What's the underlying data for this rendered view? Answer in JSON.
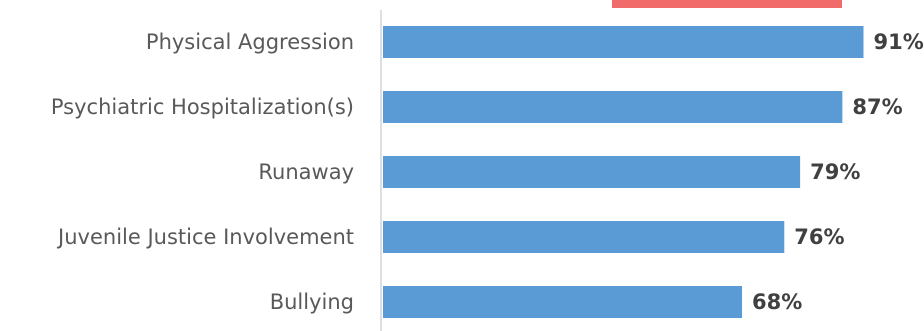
{
  "chart_data": {
    "type": "bar",
    "orientation": "horizontal",
    "title": "",
    "xlabel": "",
    "ylabel": "",
    "categories": [
      "Physical Aggression",
      "Psychiatric Hospitalization(s)",
      "Runaway",
      "Juvenile Justice Involvement",
      "Bullying"
    ],
    "values": [
      91,
      87,
      79,
      76,
      68
    ],
    "value_labels": [
      "91%",
      "87%",
      "79%",
      "76%",
      "68%"
    ],
    "xlim": [
      0,
      100
    ],
    "grid": false,
    "legend": "none",
    "colors": {
      "bar": "#5b9bd5",
      "axis": "#bfbfbf",
      "partial_element": "#f26b6b"
    }
  }
}
